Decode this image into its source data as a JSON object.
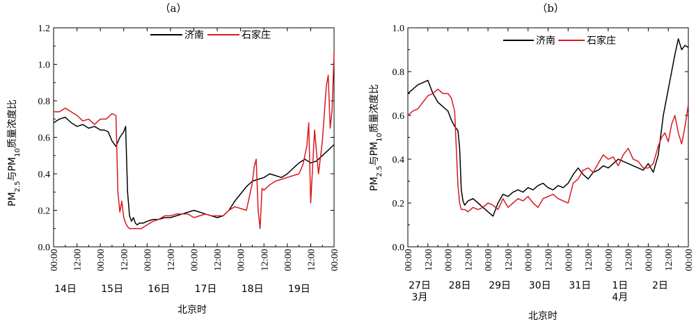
{
  "colors": {
    "jinan": "#000000",
    "shijiazhuang": "#d7191c"
  },
  "chart_data": [
    {
      "type": "line",
      "panel_title": "（a）",
      "xlabel": "北京时",
      "ylabel": {
        "pm": "PM",
        "sub1": "2.5",
        "mid": "与PM",
        "sub2": "10",
        "rest": "质量浓度比"
      },
      "ylim": [
        0.0,
        1.2
      ],
      "yticks": [
        "0.0",
        "0.2",
        "0.4",
        "0.6",
        "0.8",
        "1.0",
        "1.2"
      ],
      "xticks": [
        {
          "x": 0,
          "label": "00:00"
        },
        {
          "x": 12,
          "label": "12:00"
        },
        {
          "x": 24,
          "label": "00:00"
        },
        {
          "x": 36,
          "label": "12:00"
        },
        {
          "x": 48,
          "label": "00:00"
        },
        {
          "x": 60,
          "label": "12:00"
        },
        {
          "x": 72,
          "label": "00:00"
        },
        {
          "x": 84,
          "label": "12:00"
        },
        {
          "x": 96,
          "label": "00:00"
        },
        {
          "x": 108,
          "label": "12:00"
        },
        {
          "x": 120,
          "label": "00:00"
        },
        {
          "x": 132,
          "label": "12:00"
        },
        {
          "x": 144,
          "label": "00:00"
        }
      ],
      "xlim": [
        0,
        144
      ],
      "day_labels": [
        {
          "x": 0,
          "text": "14日"
        },
        {
          "x": 24,
          "text": "15日"
        },
        {
          "x": 48,
          "text": "16日"
        },
        {
          "x": 72,
          "text": "17日"
        },
        {
          "x": 96,
          "text": "18日"
        },
        {
          "x": 120,
          "text": "19日"
        }
      ],
      "legend": [
        "济南",
        "石家庄"
      ],
      "series": [
        {
          "name": "济南",
          "x": [
            0,
            3,
            6,
            9,
            12,
            15,
            18,
            21,
            24,
            26,
            28,
            30,
            32,
            34,
            36,
            37,
            38,
            39,
            40,
            41,
            42,
            43,
            44,
            46,
            48,
            51,
            54,
            57,
            60,
            63,
            66,
            69,
            72,
            75,
            78,
            81,
            84,
            87,
            90,
            93,
            96,
            99,
            102,
            105,
            108,
            111,
            114,
            117,
            120,
            123,
            126,
            129,
            132,
            135,
            138,
            141,
            144
          ],
          "y": [
            0.68,
            0.7,
            0.71,
            0.68,
            0.66,
            0.67,
            0.65,
            0.66,
            0.64,
            0.64,
            0.63,
            0.58,
            0.55,
            0.6,
            0.63,
            0.66,
            0.3,
            0.17,
            0.14,
            0.16,
            0.13,
            0.12,
            0.13,
            0.13,
            0.14,
            0.15,
            0.15,
            0.16,
            0.16,
            0.17,
            0.18,
            0.19,
            0.2,
            0.19,
            0.18,
            0.17,
            0.16,
            0.17,
            0.2,
            0.25,
            0.29,
            0.33,
            0.36,
            0.37,
            0.38,
            0.4,
            0.39,
            0.38,
            0.4,
            0.43,
            0.46,
            0.48,
            0.46,
            0.47,
            0.5,
            0.53,
            0.56
          ]
        },
        {
          "name": "石家庄",
          "x": [
            0,
            3,
            6,
            9,
            12,
            15,
            18,
            21,
            24,
            27,
            30,
            32,
            33,
            34,
            35,
            36,
            37,
            38,
            39,
            40,
            42,
            45,
            48,
            51,
            54,
            57,
            60,
            63,
            66,
            69,
            72,
            75,
            78,
            81,
            84,
            87,
            90,
            93,
            96,
            99,
            102,
            103,
            104,
            105,
            106,
            107,
            108,
            111,
            114,
            117,
            120,
            123,
            126,
            128,
            130,
            131,
            132,
            134,
            136,
            138,
            140,
            141,
            142,
            143,
            144
          ],
          "y": [
            0.74,
            0.74,
            0.76,
            0.74,
            0.72,
            0.69,
            0.7,
            0.67,
            0.7,
            0.7,
            0.73,
            0.72,
            0.3,
            0.19,
            0.25,
            0.16,
            0.13,
            0.11,
            0.1,
            0.1,
            0.1,
            0.1,
            0.12,
            0.14,
            0.15,
            0.17,
            0.17,
            0.18,
            0.18,
            0.18,
            0.16,
            0.17,
            0.18,
            0.17,
            0.17,
            0.17,
            0.2,
            0.22,
            0.21,
            0.2,
            0.35,
            0.44,
            0.48,
            0.2,
            0.1,
            0.32,
            0.31,
            0.34,
            0.36,
            0.37,
            0.38,
            0.39,
            0.4,
            0.45,
            0.55,
            0.68,
            0.24,
            0.64,
            0.4,
            0.58,
            0.88,
            0.94,
            0.65,
            0.75,
            1.07
          ]
        }
      ]
    },
    {
      "type": "line",
      "panel_title": "（b）",
      "xlabel": "北京时",
      "ylabel": {
        "pm": "PM",
        "sub1": "2.5",
        "mid": "与PM",
        "sub2": "10",
        "rest": "质量浓度比"
      },
      "ylim": [
        0.0,
        1.0
      ],
      "yticks": [
        "0.0",
        "0.2",
        "0.4",
        "0.6",
        "0.8",
        "1.0"
      ],
      "xticks": [
        {
          "x": 0,
          "label": "00:00"
        },
        {
          "x": 12,
          "label": "12:00"
        },
        {
          "x": 24,
          "label": "00:00"
        },
        {
          "x": 36,
          "label": "12:00"
        },
        {
          "x": 48,
          "label": "00:00"
        },
        {
          "x": 60,
          "label": "12:00"
        },
        {
          "x": 72,
          "label": "00:00"
        },
        {
          "x": 84,
          "label": "12:00"
        },
        {
          "x": 96,
          "label": "00:00"
        },
        {
          "x": 108,
          "label": "12:00"
        },
        {
          "x": 120,
          "label": "00:00"
        },
        {
          "x": 132,
          "label": "12:00"
        },
        {
          "x": 144,
          "label": "00:00"
        },
        {
          "x": 156,
          "label": "12:00"
        },
        {
          "x": 168,
          "label": "00:00"
        }
      ],
      "xlim": [
        0,
        168
      ],
      "day_labels": [
        {
          "x": 0,
          "text": "27日"
        },
        {
          "x": 24,
          "text": "28日"
        },
        {
          "x": 48,
          "text": "29日"
        },
        {
          "x": 72,
          "text": "30日"
        },
        {
          "x": 96,
          "text": "31日"
        },
        {
          "x": 120,
          "text": "1日"
        },
        {
          "x": 144,
          "text": "2日"
        }
      ],
      "month_labels": [
        {
          "x": 0,
          "text": "3月"
        },
        {
          "x": 120,
          "text": "4月"
        }
      ],
      "legend": [
        "济南",
        "石家庄"
      ],
      "series": [
        {
          "name": "济南",
          "x": [
            0,
            3,
            6,
            9,
            12,
            15,
            18,
            21,
            24,
            26,
            28,
            30,
            31,
            32,
            33,
            34,
            36,
            39,
            42,
            45,
            48,
            51,
            54,
            57,
            60,
            63,
            66,
            69,
            72,
            75,
            78,
            81,
            84,
            87,
            90,
            93,
            96,
            99,
            102,
            105,
            108,
            111,
            114,
            117,
            120,
            123,
            126,
            129,
            132,
            135,
            138,
            141,
            144,
            147,
            150,
            153,
            156,
            158,
            160,
            162,
            164,
            166,
            168
          ],
          "y": [
            0.7,
            0.72,
            0.74,
            0.75,
            0.76,
            0.7,
            0.66,
            0.64,
            0.62,
            0.58,
            0.55,
            0.53,
            0.45,
            0.26,
            0.21,
            0.19,
            0.21,
            0.22,
            0.2,
            0.18,
            0.16,
            0.14,
            0.2,
            0.24,
            0.23,
            0.25,
            0.26,
            0.25,
            0.27,
            0.26,
            0.28,
            0.29,
            0.27,
            0.26,
            0.28,
            0.27,
            0.29,
            0.33,
            0.36,
            0.33,
            0.31,
            0.34,
            0.35,
            0.37,
            0.36,
            0.38,
            0.4,
            0.39,
            0.38,
            0.37,
            0.36,
            0.35,
            0.38,
            0.34,
            0.42,
            0.6,
            0.72,
            0.8,
            0.88,
            0.95,
            0.9,
            0.92,
            0.91
          ]
        },
        {
          "name": "石家庄",
          "x": [
            0,
            3,
            6,
            9,
            12,
            15,
            18,
            21,
            24,
            26,
            28,
            29,
            30,
            31,
            32,
            34,
            36,
            39,
            42,
            45,
            48,
            51,
            54,
            57,
            60,
            63,
            66,
            69,
            72,
            75,
            78,
            81,
            84,
            87,
            90,
            93,
            96,
            99,
            102,
            105,
            108,
            111,
            114,
            117,
            120,
            123,
            126,
            129,
            132,
            135,
            138,
            141,
            144,
            147,
            150,
            152,
            154,
            156,
            158,
            160,
            162,
            164,
            166,
            168
          ],
          "y": [
            0.6,
            0.62,
            0.63,
            0.66,
            0.69,
            0.7,
            0.72,
            0.7,
            0.7,
            0.68,
            0.62,
            0.45,
            0.28,
            0.2,
            0.17,
            0.17,
            0.16,
            0.18,
            0.17,
            0.18,
            0.2,
            0.19,
            0.17,
            0.22,
            0.18,
            0.2,
            0.22,
            0.21,
            0.23,
            0.2,
            0.18,
            0.22,
            0.23,
            0.24,
            0.22,
            0.21,
            0.2,
            0.29,
            0.31,
            0.35,
            0.36,
            0.34,
            0.38,
            0.42,
            0.4,
            0.41,
            0.37,
            0.42,
            0.45,
            0.4,
            0.39,
            0.36,
            0.36,
            0.38,
            0.46,
            0.5,
            0.52,
            0.48,
            0.56,
            0.6,
            0.52,
            0.47,
            0.55,
            0.65
          ]
        }
      ]
    }
  ]
}
